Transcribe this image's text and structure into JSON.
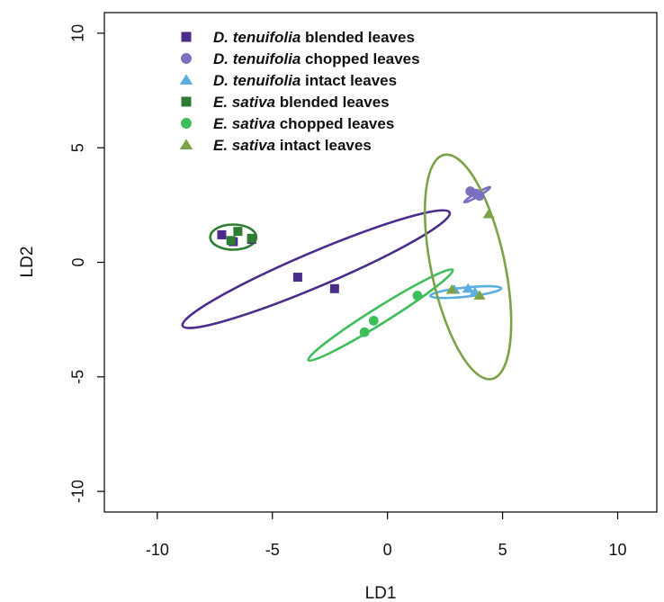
{
  "chart_data": {
    "type": "scatter",
    "xlabel": "LD1",
    "ylabel": "LD2",
    "xlim": [
      -12.3,
      11.7
    ],
    "ylim": [
      -10.9,
      10.9
    ],
    "xticks": [
      -10,
      -5,
      0,
      5,
      10
    ],
    "yticks": [
      -10,
      -5,
      0,
      5,
      10
    ],
    "xtick_labels": [
      "-10",
      "-5",
      "0",
      "5",
      "10"
    ],
    "ytick_labels": [
      "-10",
      "-5",
      "0",
      "5",
      "10"
    ],
    "grid": false,
    "legend_position": "top-left",
    "series": [
      {
        "name": "D. tenuifolia blended leaves",
        "species": "D. tenuifolia",
        "treatment": "blended leaves",
        "marker": "square",
        "color": "#4B2C8A",
        "x": [
          -7.2,
          -6.7,
          -5.9,
          -3.9,
          -2.3
        ],
        "y": [
          1.2,
          0.9,
          1.0,
          -0.65,
          -1.15
        ],
        "ellipse": {
          "cx": -3.1,
          "cy": -0.3,
          "rx": 6.3,
          "ry": 0.75,
          "angle": -23
        }
      },
      {
        "name": "D. tenuifolia chopped leaves",
        "species": "D. tenuifolia",
        "treatment": "chopped leaves",
        "marker": "circle",
        "color": "#7B6FBF",
        "x": [
          3.6,
          3.85,
          4.0
        ],
        "y": [
          3.1,
          3.0,
          2.9
        ],
        "ellipse": {
          "cx": 3.9,
          "cy": 2.95,
          "rx": 0.65,
          "ry": 0.08,
          "angle": -30
        }
      },
      {
        "name": "D. tenuifolia intact leaves",
        "species": "D. tenuifolia",
        "treatment": "intact leaves",
        "marker": "triangle",
        "color": "#5AAEE0",
        "x": [
          2.9,
          3.5,
          3.8
        ],
        "y": [
          -1.2,
          -1.15,
          -1.3
        ],
        "ellipse": {
          "cx": 3.4,
          "cy": -1.3,
          "rx": 1.55,
          "ry": 0.2,
          "angle": -6
        }
      },
      {
        "name": "E. sativa blended leaves",
        "species": "E. sativa",
        "treatment": "blended leaves",
        "marker": "square",
        "color": "#2E7D32",
        "x": [
          -6.5,
          -6.8,
          -5.9
        ],
        "y": [
          1.35,
          0.95,
          1.05
        ],
        "ellipse": {
          "cx": -6.7,
          "cy": 1.1,
          "rx": 1.0,
          "ry": 0.55,
          "angle": 0
        }
      },
      {
        "name": "E. sativa chopped leaves",
        "species": "E. sativa",
        "treatment": "chopped leaves",
        "marker": "circle",
        "color": "#3DBE5A",
        "x": [
          -1.0,
          -0.6,
          1.3
        ],
        "y": [
          -3.05,
          -2.55,
          -1.45
        ],
        "ellipse": {
          "cx": -0.3,
          "cy": -2.3,
          "rx": 3.7,
          "ry": 0.35,
          "angle": -32
        }
      },
      {
        "name": "E. sativa intact leaves",
        "species": "E. sativa",
        "treatment": "intact leaves",
        "marker": "triangle",
        "color": "#7BA346",
        "x": [
          4.4,
          2.8,
          4.0
        ],
        "y": [
          2.1,
          -1.2,
          -1.45
        ],
        "ellipse": {
          "cx": 3.5,
          "cy": -0.2,
          "rx": 1.6,
          "ry": 5.0,
          "angle": -12
        }
      }
    ]
  }
}
